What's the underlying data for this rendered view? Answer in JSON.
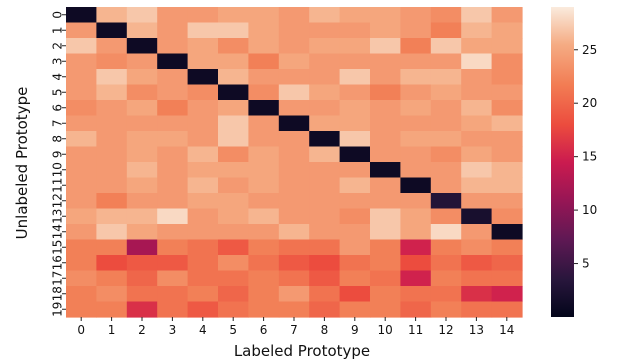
{
  "chart_data": {
    "type": "heatmap",
    "xlabel": "Labeled Prototype",
    "ylabel": "Unlabeled Prototype",
    "x_ticks": [
      "0",
      "1",
      "2",
      "3",
      "4",
      "5",
      "6",
      "7",
      "8",
      "9",
      "10",
      "11",
      "12",
      "13",
      "14"
    ],
    "y_ticks": [
      "0",
      "1",
      "2",
      "3",
      "4",
      "5",
      "6",
      "7",
      "8",
      "9",
      "10",
      "11",
      "12",
      "13",
      "14",
      "15",
      "16",
      "17",
      "18",
      "19"
    ],
    "colorbar": {
      "min": 0,
      "max": 29,
      "ticks": [
        5,
        10,
        15,
        20,
        25
      ],
      "colormap": "rocket"
    },
    "values": [
      [
        1,
        26,
        27,
        24,
        24,
        25,
        25,
        24,
        26,
        25,
        25,
        24,
        23,
        27,
        24
      ],
      [
        24,
        1,
        26,
        24,
        27,
        27,
        25,
        24,
        24,
        24,
        25,
        24,
        22,
        26,
        25
      ],
      [
        27,
        24,
        1,
        24,
        25,
        23,
        25,
        24,
        25,
        25,
        27,
        22,
        27,
        25,
        25
      ],
      [
        24,
        23,
        24,
        1,
        25,
        25,
        22,
        25,
        24,
        24,
        24,
        24,
        24,
        28,
        23
      ],
      [
        24,
        27,
        25,
        24,
        1,
        26,
        24,
        24,
        24,
        27,
        24,
        26,
        26,
        24,
        23
      ],
      [
        24,
        26,
        23,
        24,
        23,
        1,
        23,
        27,
        25,
        24,
        22,
        24,
        25,
        24,
        24
      ],
      [
        23,
        24,
        25,
        22,
        24,
        25,
        1,
        24,
        24,
        25,
        24,
        25,
        24,
        26,
        23
      ],
      [
        24,
        24,
        24,
        24,
        24,
        27,
        24,
        1,
        25,
        25,
        24,
        24,
        24,
        25,
        26
      ],
      [
        26,
        24,
        25,
        25,
        24,
        27,
        24,
        24,
        1,
        27,
        24,
        25,
        25,
        24,
        24
      ],
      [
        24,
        24,
        25,
        24,
        26,
        23,
        25,
        24,
        26,
        1,
        24,
        24,
        23,
        25,
        24
      ],
      [
        24,
        24,
        26,
        24,
        25,
        25,
        25,
        24,
        24,
        24,
        1,
        24,
        24,
        27,
        26
      ],
      [
        24,
        24,
        25,
        24,
        26,
        24,
        25,
        24,
        24,
        26,
        24,
        1,
        24,
        26,
        26
      ],
      [
        24,
        22,
        24,
        24,
        25,
        25,
        24,
        24,
        24,
        24,
        24,
        24,
        3,
        24,
        24
      ],
      [
        25,
        26,
        26,
        28,
        24,
        25,
        26,
        24,
        24,
        23,
        27,
        25,
        23,
        2,
        23
      ],
      [
        24,
        27,
        25,
        24,
        24,
        24,
        24,
        26,
        24,
        24,
        27,
        25,
        28,
        24,
        1
      ],
      [
        22,
        22,
        12,
        22,
        21,
        19,
        22,
        21,
        21,
        24,
        22,
        15,
        22,
        23,
        22
      ],
      [
        22,
        18,
        19,
        19,
        21,
        23,
        21,
        19,
        18,
        21,
        22,
        18,
        21,
        19,
        20
      ],
      [
        23,
        22,
        20,
        23,
        21,
        21,
        22,
        21,
        19,
        22,
        21,
        15,
        22,
        21,
        21
      ],
      [
        22,
        23,
        21,
        21,
        22,
        20,
        22,
        24,
        21,
        18,
        22,
        21,
        21,
        16,
        15
      ],
      [
        22,
        22,
        16,
        21,
        19,
        21,
        22,
        22,
        20,
        22,
        22,
        20,
        22,
        21,
        21
      ]
    ]
  }
}
